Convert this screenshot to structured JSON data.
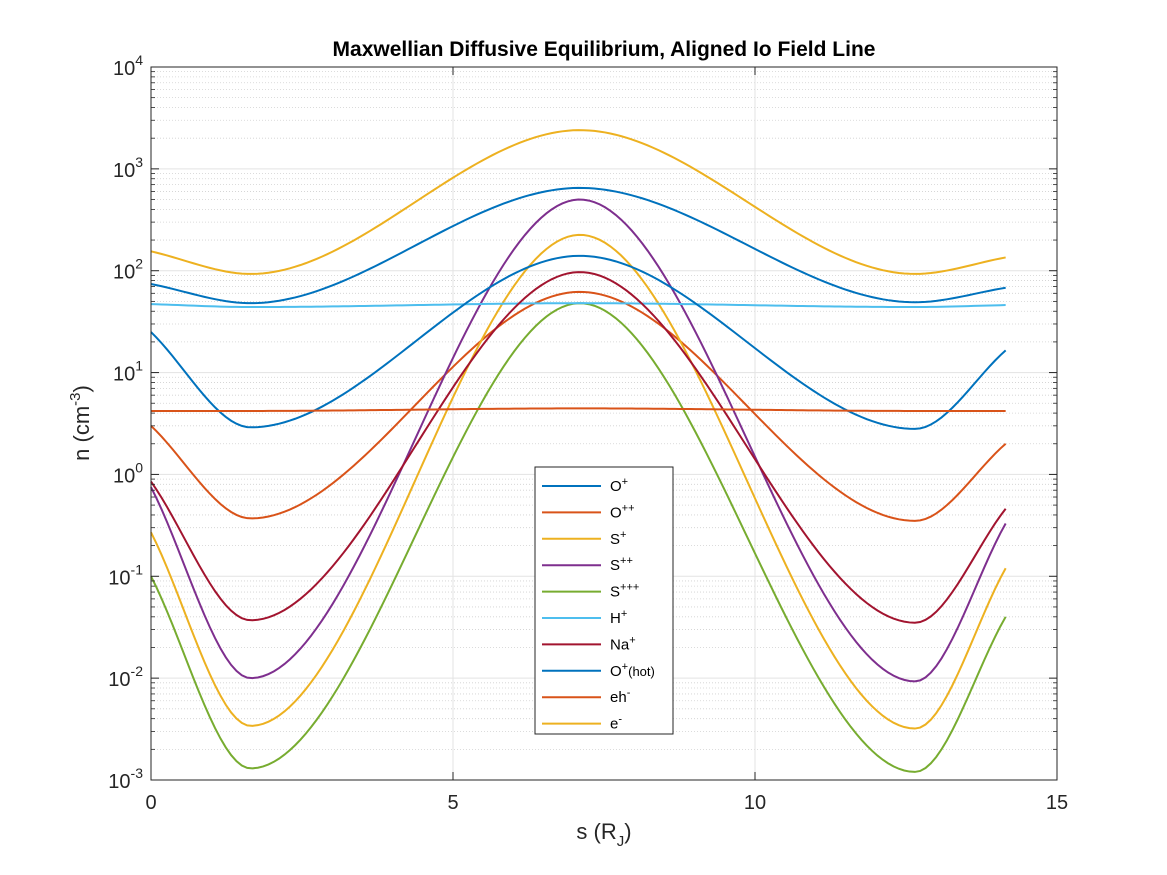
{
  "chart_data": {
    "type": "line",
    "title": "Maxwellian Diffusive Equilibrium, Aligned Io Field Line",
    "xlabel": {
      "base": "s (R",
      "sub": "J",
      "tail": ")"
    },
    "ylabel": {
      "base": "n (cm",
      "sup": "-3",
      "tail": ")"
    },
    "xlim": [
      0,
      15
    ],
    "ylim_log10": [
      -3,
      4
    ],
    "yscale": "log",
    "grid": true,
    "minor_grid": true,
    "x_ticks": [
      "0",
      "5",
      "10",
      "15"
    ],
    "y_ticks": [
      {
        "base": "10",
        "exp": "-3"
      },
      {
        "base": "10",
        "exp": "-2"
      },
      {
        "base": "10",
        "exp": "-1"
      },
      {
        "base": "10",
        "exp": "0"
      },
      {
        "base": "10",
        "exp": "1"
      },
      {
        "base": "10",
        "exp": "2"
      },
      {
        "base": "10",
        "exp": "3"
      },
      {
        "base": "10",
        "exp": "4"
      }
    ],
    "legend_position": "bottom-center",
    "series": [
      {
        "name": "O+",
        "label": {
          "base": "O",
          "sup": "+",
          "tail": ""
        },
        "color": "#0072BD",
        "x": [
          0,
          1.65,
          7.1,
          12.65,
          14.15
        ],
        "y": [
          74,
          48,
          650,
          49,
          68
        ]
      },
      {
        "name": "O++",
        "label": {
          "base": "O",
          "sup": "++",
          "tail": ""
        },
        "color": "#D95319",
        "x": [
          0,
          1.65,
          7.1,
          12.65,
          14.15
        ],
        "y": [
          3.0,
          0.37,
          62,
          0.35,
          2.0
        ]
      },
      {
        "name": "S+",
        "label": {
          "base": "S",
          "sup": "+",
          "tail": ""
        },
        "color": "#EDB120",
        "x": [
          0,
          1.65,
          7.1,
          12.65,
          14.15
        ],
        "y": [
          0.27,
          0.0034,
          225,
          0.0032,
          0.12
        ]
      },
      {
        "name": "S++",
        "label": {
          "base": "S",
          "sup": "++",
          "tail": ""
        },
        "color": "#7E2F8E",
        "x": [
          0,
          1.65,
          7.1,
          12.65,
          14.15
        ],
        "y": [
          0.75,
          0.01,
          500,
          0.0093,
          0.33
        ]
      },
      {
        "name": "S+++",
        "label": {
          "base": "S",
          "sup": "+++",
          "tail": ""
        },
        "color": "#77AC30",
        "x": [
          0,
          1.65,
          7.1,
          12.65,
          14.15
        ],
        "y": [
          0.1,
          0.0013,
          48,
          0.0012,
          0.04
        ]
      },
      {
        "name": "H+",
        "label": {
          "base": "H",
          "sup": "+",
          "tail": ""
        },
        "color": "#4DBEEE",
        "x": [
          0,
          1.65,
          7.1,
          12.65,
          14.15
        ],
        "y": [
          47,
          44,
          48,
          44,
          46
        ]
      },
      {
        "name": "Na+",
        "label": {
          "base": "Na",
          "sup": "+",
          "tail": ""
        },
        "color": "#A2142F",
        "x": [
          0,
          1.65,
          7.1,
          12.65,
          14.15
        ],
        "y": [
          0.85,
          0.037,
          97,
          0.035,
          0.46
        ]
      },
      {
        "name": "O+(hot)",
        "label": {
          "base": "O",
          "sup": "+",
          "tail": "(hot)"
        },
        "color": "#0072BD",
        "x": [
          0,
          1.65,
          7.1,
          12.65,
          14.15
        ],
        "y": [
          25,
          2.9,
          140,
          2.8,
          16.5
        ]
      },
      {
        "name": "eh-",
        "label": {
          "base": "eh",
          "sup": "-",
          "tail": ""
        },
        "color": "#D95319",
        "x": [
          0,
          1.65,
          7.1,
          12.65,
          14.15
        ],
        "y": [
          4.2,
          4.2,
          4.45,
          4.2,
          4.2
        ]
      },
      {
        "name": "e-",
        "label": {
          "base": "e",
          "sup": "-",
          "tail": ""
        },
        "color": "#EDB120",
        "x": [
          0,
          1.65,
          7.1,
          12.65,
          14.15
        ],
        "y": [
          155,
          93,
          2400,
          93,
          135
        ]
      }
    ]
  }
}
